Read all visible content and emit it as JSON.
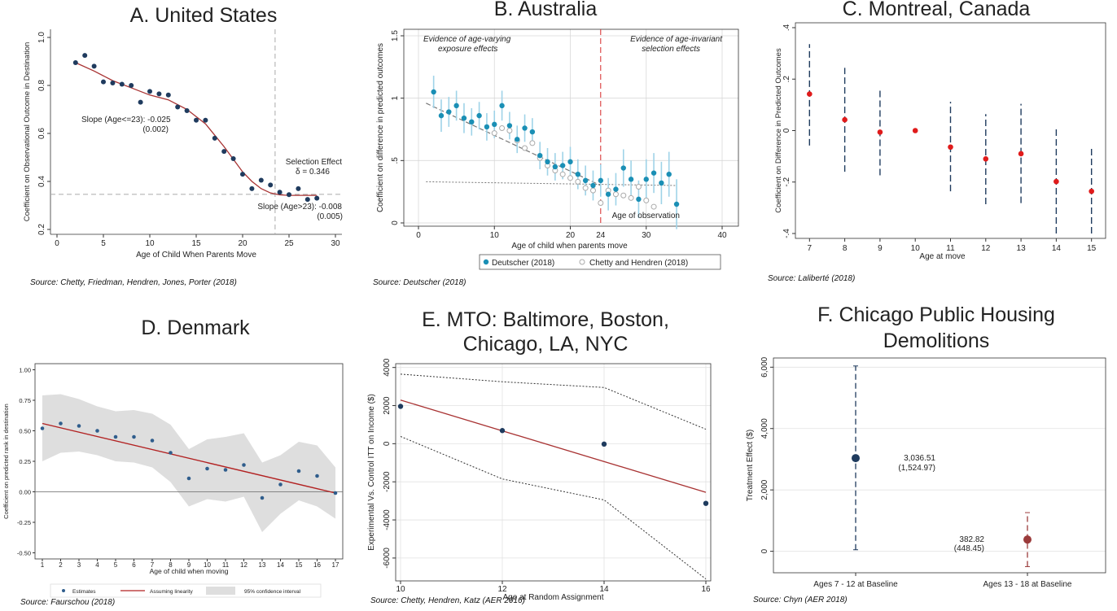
{
  "chart_data": [
    {
      "type": "scatter",
      "title": "A. United States",
      "xlabel": "Age of Child When Parents Move",
      "ylabel": "Coefficient on Observational Outcome in Destination",
      "xlim": [
        0,
        30
      ],
      "ylim": [
        0.2,
        1.0
      ],
      "xticks": [
        "0",
        "5",
        "10",
        "15",
        "20",
        "25",
        "30"
      ],
      "yticks": [
        "0.2",
        "0.4",
        "0.6",
        "0.8",
        "1.0"
      ],
      "grid": false,
      "series": [
        {
          "color": "#1f3b5e",
          "x": [
            2,
            3,
            4,
            5,
            6,
            7,
            8,
            9,
            10,
            11,
            12,
            13,
            14,
            15,
            16,
            17,
            18,
            19,
            20,
            21,
            22,
            23,
            24,
            25,
            26,
            27,
            28
          ],
          "y": [
            0.895,
            0.925,
            0.88,
            0.815,
            0.81,
            0.805,
            0.8,
            0.73,
            0.775,
            0.765,
            0.76,
            0.71,
            0.695,
            0.655,
            0.655,
            0.58,
            0.525,
            0.495,
            0.43,
            0.37,
            0.405,
            0.385,
            0.355,
            0.345,
            0.37,
            0.325,
            0.33
          ]
        }
      ],
      "fit_line": {
        "color": "#a83232",
        "x": [
          2,
          4,
          6,
          8,
          10,
          12,
          14,
          16,
          18,
          20,
          21,
          22,
          23,
          24,
          25,
          26,
          27,
          28
        ],
        "y": [
          0.895,
          0.86,
          0.82,
          0.79,
          0.76,
          0.74,
          0.7,
          0.64,
          0.545,
          0.44,
          0.4,
          0.37,
          0.352,
          0.344,
          0.342,
          0.342,
          0.342,
          0.342
        ]
      },
      "reference_lines": {
        "vertical_x": 23.5,
        "horizontal_y": 0.346
      },
      "annotations": {
        "slope_left": "Slope (Age<=23): -0.025",
        "slope_left_se": "(0.002)",
        "selection": "Selection Effect",
        "delta": "δ = 0.346",
        "slope_right": "Slope (Age>23): -0.008",
        "slope_right_se": "(0.005)"
      },
      "source": "Source: Chetty, Friedman, Hendren, Jones, Porter (2018)"
    },
    {
      "type": "scatter",
      "title": "B. Australia",
      "xlabel": "Age of child when parents move",
      "ylabel": "Coefficient on difference in predicted outcomes",
      "xlim": [
        0,
        40
      ],
      "ylim": [
        0.0,
        1.5
      ],
      "xticks": [
        "0",
        "10",
        "20",
        "30",
        "40"
      ],
      "yticks": [
        "0",
        ".5",
        "1",
        "1.5"
      ],
      "grid": true,
      "legend_position": "bottom",
      "series": [
        {
          "name": "Deutscher (2018)",
          "color": "#1a8fb5",
          "x": [
            2,
            3,
            4,
            5,
            6,
            7,
            8,
            9,
            10,
            11,
            12,
            13,
            14,
            15,
            16,
            17,
            18,
            19,
            20,
            21,
            22,
            23,
            24,
            25,
            26,
            27,
            28,
            29,
            30,
            31,
            32,
            33,
            34
          ],
          "y": [
            1.05,
            0.86,
            0.89,
            0.94,
            0.84,
            0.81,
            0.86,
            0.77,
            0.79,
            0.94,
            0.78,
            0.67,
            0.76,
            0.73,
            0.54,
            0.49,
            0.45,
            0.46,
            0.49,
            0.39,
            0.34,
            0.3,
            0.34,
            0.23,
            0.27,
            0.44,
            0.35,
            0.19,
            0.35,
            0.4,
            0.32,
            0.39,
            0.15
          ],
          "err": [
            0.13,
            0.13,
            0.12,
            0.12,
            0.12,
            0.11,
            0.11,
            0.11,
            0.11,
            0.12,
            0.11,
            0.11,
            0.11,
            0.11,
            0.11,
            0.11,
            0.11,
            0.11,
            0.12,
            0.12,
            0.12,
            0.12,
            0.13,
            0.13,
            0.13,
            0.15,
            0.15,
            0.15,
            0.16,
            0.16,
            0.17,
            0.18,
            0.2
          ]
        },
        {
          "name": "Chetty and Hendren (2018)",
          "color": "#aaaaaa",
          "x": [
            10,
            11,
            12,
            13,
            14,
            15,
            16,
            17,
            18,
            19,
            20,
            21,
            22,
            23,
            24,
            25,
            26,
            27,
            28,
            29,
            30,
            31
          ],
          "y": [
            0.72,
            0.76,
            0.74,
            0.66,
            0.6,
            0.64,
            0.52,
            0.46,
            0.42,
            0.39,
            0.36,
            0.33,
            0.28,
            0.26,
            0.16,
            0.26,
            0.23,
            0.22,
            0.2,
            0.29,
            0.18,
            0.13
          ]
        }
      ],
      "fit_line": {
        "color": "#777777",
        "x": [
          1,
          24
        ],
        "y": [
          0.96,
          0.3
        ]
      },
      "flat_line": {
        "color": "#777777",
        "x": [
          1,
          34
        ],
        "y": [
          0.33,
          0.3
        ]
      },
      "reference_lines": {
        "vertical_x": 24
      },
      "annotations": {
        "left_1": "Evidence of age-varying",
        "left_2": "exposure effects",
        "right_1": "Evidence of age-invariant",
        "right_2": "selection effects",
        "age_obs": "Age of observation",
        "x24": "24"
      },
      "source": "Source: Deutscher (2018)"
    },
    {
      "type": "scatter",
      "title": "C. Montreal, Canada",
      "xlabel": "Age at move",
      "ylabel": "Coefficient on Difference in Predicted Outcomes",
      "xlim": [
        6.6,
        15.4
      ],
      "ylim": [
        -0.4,
        0.4
      ],
      "xticks": [
        "7",
        "8",
        "9",
        "10",
        "11",
        "12",
        "13",
        "14",
        "15"
      ],
      "yticks": [
        "-.4",
        "-.2",
        "0",
        ".2",
        ".4"
      ],
      "grid": false,
      "series": [
        {
          "color": "#e01b1b",
          "x": [
            7,
            8,
            9,
            10,
            11,
            12,
            13,
            14,
            15
          ],
          "y": [
            0.142,
            0.042,
            -0.006,
            0.0,
            -0.064,
            -0.11,
            -0.09,
            -0.198,
            -0.236
          ],
          "ci_low": [
            -0.058,
            -0.16,
            -0.174,
            0.0,
            -0.236,
            -0.286,
            -0.282,
            -0.4,
            -0.4
          ],
          "ci_high": [
            0.336,
            0.244,
            0.16,
            0.0,
            0.112,
            0.064,
            0.104,
            0.01,
            -0.06
          ]
        }
      ],
      "source": "Source: Laliberté (2018)"
    },
    {
      "type": "scatter",
      "title": "D. Denmark",
      "xlabel": "Age of child when moving",
      "ylabel": "Coefficient on predicted rank in destination",
      "xlim": [
        0.6,
        17.4
      ],
      "ylim": [
        -0.55,
        1.05
      ],
      "xticks": [
        "1",
        "2",
        "3",
        "4",
        "5",
        "6",
        "7",
        "8",
        "9",
        "10",
        "11",
        "12",
        "13",
        "14",
        "15",
        "16",
        "17"
      ],
      "yticks": [
        "-0.50",
        "-0.25",
        "0.00",
        "0.25",
        "0.50",
        "0.75",
        "1.00"
      ],
      "grid": false,
      "legend_position": "bottom",
      "series": [
        {
          "name": "Estimates",
          "color": "#2f5d8c",
          "x": [
            1,
            2,
            3,
            4,
            5,
            6,
            7,
            8,
            9,
            10,
            11,
            12,
            13,
            14,
            15,
            16,
            17
          ],
          "y": [
            0.52,
            0.56,
            0.54,
            0.5,
            0.45,
            0.45,
            0.42,
            0.32,
            0.11,
            0.19,
            0.18,
            0.22,
            -0.05,
            0.06,
            0.17,
            0.13,
            -0.01
          ]
        }
      ],
      "fit_line": {
        "name": "Assuming linearity",
        "color": "#b22222",
        "x": [
          1,
          17
        ],
        "y": [
          0.56,
          -0.01
        ]
      },
      "ci_band": {
        "name": "95% confidence interval",
        "color": "#dedede",
        "x": [
          1,
          2,
          3,
          4,
          5,
          6,
          7,
          8,
          9,
          10,
          11,
          12,
          13,
          14,
          15,
          16,
          17
        ],
        "low": [
          0.25,
          0.32,
          0.33,
          0.3,
          0.25,
          0.24,
          0.2,
          0.08,
          -0.12,
          -0.06,
          -0.08,
          -0.04,
          -0.33,
          -0.18,
          -0.07,
          -0.12,
          -0.22
        ],
        "high": [
          0.79,
          0.8,
          0.76,
          0.7,
          0.66,
          0.67,
          0.64,
          0.55,
          0.35,
          0.43,
          0.45,
          0.48,
          0.24,
          0.3,
          0.41,
          0.38,
          0.2
        ]
      },
      "source": "Source: Faurschou (2018)"
    },
    {
      "type": "scatter",
      "title": "E. MTO: Baltimore, Boston, Chicago, LA, NYC",
      "title_line1": "E. MTO: Baltimore, Boston,",
      "title_line2": "Chicago, LA, NYC",
      "xlabel": "Age at Random Assignment",
      "ylabel": "Experimental Vs. Control ITT on Income ($)",
      "xlim": [
        10,
        16
      ],
      "ylim": [
        -7200,
        4200
      ],
      "xticks": [
        "10",
        "12",
        "14",
        "16"
      ],
      "yticks": [
        "-6000",
        "-4000",
        "-2000",
        "0",
        "2000",
        "4000",
        "6000"
      ],
      "grid": true,
      "series": [
        {
          "color": "#1f3b5e",
          "x": [
            10,
            12,
            14,
            16
          ],
          "y": [
            1960,
            690,
            -20,
            -3130
          ]
        }
      ],
      "fit_line": {
        "color": "#a83232",
        "x": [
          10,
          16
        ],
        "y": [
          2290,
          -2550
        ]
      },
      "ci_upper": {
        "x": [
          10,
          12,
          14,
          16
        ],
        "y": [
          3650,
          3250,
          2950,
          760
        ]
      },
      "ci_lower": {
        "x": [
          10,
          12,
          14,
          16
        ],
        "y": [
          380,
          -1850,
          -2950,
          -7100
        ]
      },
      "source": "Source: Chetty, Hendren, Katz (AER 2016)"
    },
    {
      "type": "scatter",
      "title": "F. Chicago Public Housing Demolitions",
      "title_line1": "F. Chicago Public Housing",
      "title_line2": "Demolitions",
      "xlabel": "",
      "ylabel": "Treatment Effect ($)",
      "ylim": [
        -700,
        6300
      ],
      "categories": [
        "Ages 7 - 12 at Baseline",
        "Ages 13 - 18 at Baseline"
      ],
      "yticks": [
        "0",
        "2,000",
        "4,000",
        "6,000"
      ],
      "grid": true,
      "series": [
        {
          "color": "#1f3b5e",
          "values": [
            3036.51
          ],
          "ci_low": [
            50
          ],
          "ci_high": [
            6040
          ],
          "label": "3,036.51",
          "se": "(1,524.97)"
        },
        {
          "color": "#9b3b3b",
          "values": [
            382.82
          ],
          "ci_low": [
            -500
          ],
          "ci_high": [
            1260
          ],
          "label": "382.82",
          "se": "(448.45)"
        }
      ],
      "source": "Source: Chyn (AER 2018)"
    }
  ]
}
